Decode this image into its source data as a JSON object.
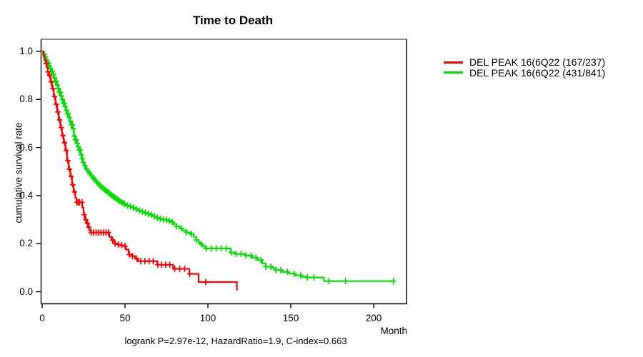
{
  "title": "Time to Death",
  "y_axis": {
    "label": "cumulative survival rate"
  },
  "x_axis": {
    "label": "Month"
  },
  "annotation": "logrank P=2.97e-12, HazardRatio=1.9, C-index=0.663",
  "legend": {
    "items": [
      {
        "label": "DEL PEAK 16(6Q22 (167/237)",
        "color": "#ff0000"
      },
      {
        "label": "DEL PEAK 16(6Q22 (431/841)",
        "color": "#00dd00"
      }
    ]
  },
  "chart_data": {
    "type": "line",
    "subtype": "kaplan-meier-step",
    "title": "Time to Death",
    "xlabel": "Month",
    "ylabel": "cumulative survival rate",
    "xlim": [
      0,
      220
    ],
    "ylim": [
      0,
      1
    ],
    "grid": false,
    "legend_position": "outside-top-right",
    "x_ticks": [
      {
        "label": "0",
        "value": 0
      },
      {
        "label": "50",
        "value": 50
      },
      {
        "label": "100",
        "value": 100
      },
      {
        "label": "150",
        "value": 150
      },
      {
        "label": "200",
        "value": 200
      }
    ],
    "y_ticks": [
      {
        "label": "0.0",
        "value": 0.0
      },
      {
        "label": "0.2",
        "value": 0.2
      },
      {
        "label": "0.4",
        "value": 0.4
      },
      {
        "label": "0.6",
        "value": 0.6
      },
      {
        "label": "0.8",
        "value": 0.8
      },
      {
        "label": "1.0",
        "value": 1.0
      }
    ],
    "stats": {
      "logrank_p": "2.97e-12",
      "hazard_ratio": "1.9",
      "c_index": "0.663"
    },
    "series": [
      {
        "name": "DEL PEAK 16(6Q22 (167/237)",
        "color": "#ff0000",
        "events_over_n": "167/237",
        "points": [
          [
            0,
            1.0
          ],
          [
            0.7,
            0.983
          ],
          [
            1.4,
            0.966
          ],
          [
            2,
            0.95
          ],
          [
            2.7,
            0.933
          ],
          [
            3.4,
            0.915
          ],
          [
            4,
            0.9
          ],
          [
            5,
            0.873
          ],
          [
            6,
            0.845
          ],
          [
            7,
            0.812
          ],
          [
            8,
            0.78
          ],
          [
            9,
            0.748
          ],
          [
            10,
            0.715
          ],
          [
            11,
            0.683
          ],
          [
            12,
            0.65
          ],
          [
            13,
            0.62
          ],
          [
            14,
            0.588
          ],
          [
            15,
            0.545
          ],
          [
            16,
            0.51
          ],
          [
            17,
            0.48
          ],
          [
            18,
            0.445
          ],
          [
            19,
            0.415
          ],
          [
            20,
            0.39
          ],
          [
            20.7,
            0.372
          ],
          [
            24.2,
            0.35
          ],
          [
            25,
            0.32
          ],
          [
            25.8,
            0.3
          ],
          [
            26.8,
            0.285
          ],
          [
            27.8,
            0.268
          ],
          [
            28.6,
            0.256
          ],
          [
            29.3,
            0.246
          ],
          [
            40.5,
            0.228
          ],
          [
            42,
            0.215
          ],
          [
            43.5,
            0.2
          ],
          [
            45.5,
            0.196
          ],
          [
            47.5,
            0.193
          ],
          [
            49.1,
            0.19
          ],
          [
            50.5,
            0.175
          ],
          [
            52.2,
            0.155
          ],
          [
            54,
            0.148
          ],
          [
            56,
            0.138
          ],
          [
            57.8,
            0.127
          ],
          [
            69.4,
            0.112
          ],
          [
            79,
            0.095
          ],
          [
            88.8,
            0.074
          ],
          [
            94.4,
            0.04
          ],
          [
            117.5,
            0.005
          ]
        ],
        "censor_marks": [
          2.5,
          3.5,
          4.5,
          5.5,
          6.5,
          7.5,
          8.5,
          9.5,
          10.5,
          11.5,
          12.5,
          13.5,
          14.5,
          15.5,
          16.5,
          17.5,
          18.5,
          19.5,
          21,
          21.8,
          22.6,
          24,
          25.4,
          26.3,
          27.3,
          28.2,
          29.6,
          31,
          32.5,
          34,
          35.5,
          37,
          38.5,
          40,
          42.5,
          44,
          46,
          48,
          50,
          52.6,
          54.5,
          57,
          59.5,
          62,
          64.5,
          67,
          69.8,
          72,
          74.5,
          77,
          80,
          83,
          86,
          89,
          98.7
        ]
      },
      {
        "name": "DEL PEAK 16(6Q22 (431/841)",
        "color": "#00dd00",
        "events_over_n": "431/841",
        "points": [
          [
            0,
            1.0
          ],
          [
            0.8,
            0.988
          ],
          [
            1.6,
            0.976
          ],
          [
            2.4,
            0.964
          ],
          [
            3.2,
            0.952
          ],
          [
            4,
            0.94
          ],
          [
            4.8,
            0.928
          ],
          [
            5.6,
            0.916
          ],
          [
            6.4,
            0.904
          ],
          [
            7.2,
            0.89
          ],
          [
            8,
            0.875
          ],
          [
            8.8,
            0.86
          ],
          [
            9.6,
            0.845
          ],
          [
            10.4,
            0.83
          ],
          [
            11.2,
            0.815
          ],
          [
            12,
            0.8
          ],
          [
            12.8,
            0.785
          ],
          [
            13.6,
            0.77
          ],
          [
            14.4,
            0.755
          ],
          [
            15.2,
            0.74
          ],
          [
            16,
            0.725
          ],
          [
            16.8,
            0.71
          ],
          [
            17.6,
            0.695
          ],
          [
            18.4,
            0.678
          ],
          [
            19.2,
            0.648
          ],
          [
            20,
            0.632
          ],
          [
            20.8,
            0.617
          ],
          [
            21.6,
            0.603
          ],
          [
            22.4,
            0.59
          ],
          [
            23.2,
            0.57
          ],
          [
            24,
            0.553
          ],
          [
            24.8,
            0.538
          ],
          [
            25.6,
            0.524
          ],
          [
            26.4,
            0.51
          ],
          [
            27.2,
            0.5
          ],
          [
            28,
            0.492
          ],
          [
            29,
            0.483
          ],
          [
            30,
            0.474
          ],
          [
            31,
            0.466
          ],
          [
            32,
            0.458
          ],
          [
            33,
            0.45
          ],
          [
            34,
            0.443
          ],
          [
            35,
            0.436
          ],
          [
            36,
            0.43
          ],
          [
            37,
            0.424
          ],
          [
            38,
            0.419
          ],
          [
            39,
            0.414
          ],
          [
            40,
            0.408
          ],
          [
            41,
            0.402
          ],
          [
            42,
            0.397
          ],
          [
            43,
            0.392
          ],
          [
            44,
            0.387
          ],
          [
            45,
            0.382
          ],
          [
            46,
            0.377
          ],
          [
            47,
            0.373
          ],
          [
            48,
            0.369
          ],
          [
            49,
            0.365
          ],
          [
            50,
            0.362
          ],
          [
            51,
            0.358
          ],
          [
            52.2,
            0.355
          ],
          [
            54,
            0.35
          ],
          [
            56,
            0.344
          ],
          [
            58,
            0.338
          ],
          [
            60,
            0.333
          ],
          [
            62,
            0.328
          ],
          [
            63.5,
            0.324
          ],
          [
            65,
            0.32
          ],
          [
            67,
            0.314
          ],
          [
            69,
            0.308
          ],
          [
            71,
            0.303
          ],
          [
            73,
            0.3
          ],
          [
            75,
            0.295
          ],
          [
            77,
            0.29
          ],
          [
            79,
            0.282
          ],
          [
            81,
            0.272
          ],
          [
            83,
            0.263
          ],
          [
            85,
            0.255
          ],
          [
            87,
            0.248
          ],
          [
            88,
            0.245
          ],
          [
            90,
            0.24
          ],
          [
            91.5,
            0.228
          ],
          [
            93,
            0.215
          ],
          [
            94.5,
            0.205
          ],
          [
            95.5,
            0.198
          ],
          [
            97,
            0.19
          ],
          [
            98.3,
            0.18
          ],
          [
            113.8,
            0.163
          ],
          [
            116.8,
            0.157
          ],
          [
            122.4,
            0.15
          ],
          [
            126.7,
            0.142
          ],
          [
            130,
            0.132
          ],
          [
            132.8,
            0.118
          ],
          [
            134.9,
            0.104
          ],
          [
            138.4,
            0.098
          ],
          [
            141,
            0.09
          ],
          [
            145,
            0.082
          ],
          [
            149,
            0.075
          ],
          [
            153,
            0.068
          ],
          [
            157,
            0.062
          ],
          [
            160,
            0.059
          ],
          [
            170,
            0.044
          ],
          [
            212,
            0.044
          ]
        ],
        "censor_marks": [
          0.8,
          1.4,
          2,
          2.6,
          3.2,
          3.8,
          4.4,
          5,
          5.6,
          6.2,
          6.8,
          7.4,
          8,
          8.6,
          9.2,
          9.8,
          10.4,
          11,
          11.6,
          12.2,
          12.8,
          13.4,
          14,
          14.6,
          15.2,
          15.8,
          16.4,
          17,
          17.6,
          18.2,
          18.8,
          19.4,
          20,
          20.6,
          21.2,
          21.8,
          22.4,
          23,
          23.6,
          24.2,
          24.8,
          25.8,
          26.8,
          27.8,
          28.8,
          29.8,
          30.8,
          31.8,
          32.8,
          33.8,
          34.8,
          35.8,
          36.8,
          37.8,
          38.8,
          39.8,
          40.8,
          41.8,
          42.8,
          43.8,
          44.8,
          45.8,
          46.8,
          47.8,
          48.8,
          49.8,
          51.5,
          53.3,
          55.1,
          56.9,
          58.7,
          60.5,
          62.3,
          64.1,
          65.9,
          67.7,
          69.5,
          71.3,
          73.1,
          74.9,
          76.7,
          78.5,
          81,
          84,
          87,
          90,
          93,
          96,
          99,
          102,
          105,
          108,
          111,
          114,
          117,
          120,
          123,
          126,
          129,
          132,
          135,
          138,
          141,
          144,
          148,
          152,
          156,
          160,
          164,
          173,
          183,
          212
        ]
      }
    ]
  }
}
